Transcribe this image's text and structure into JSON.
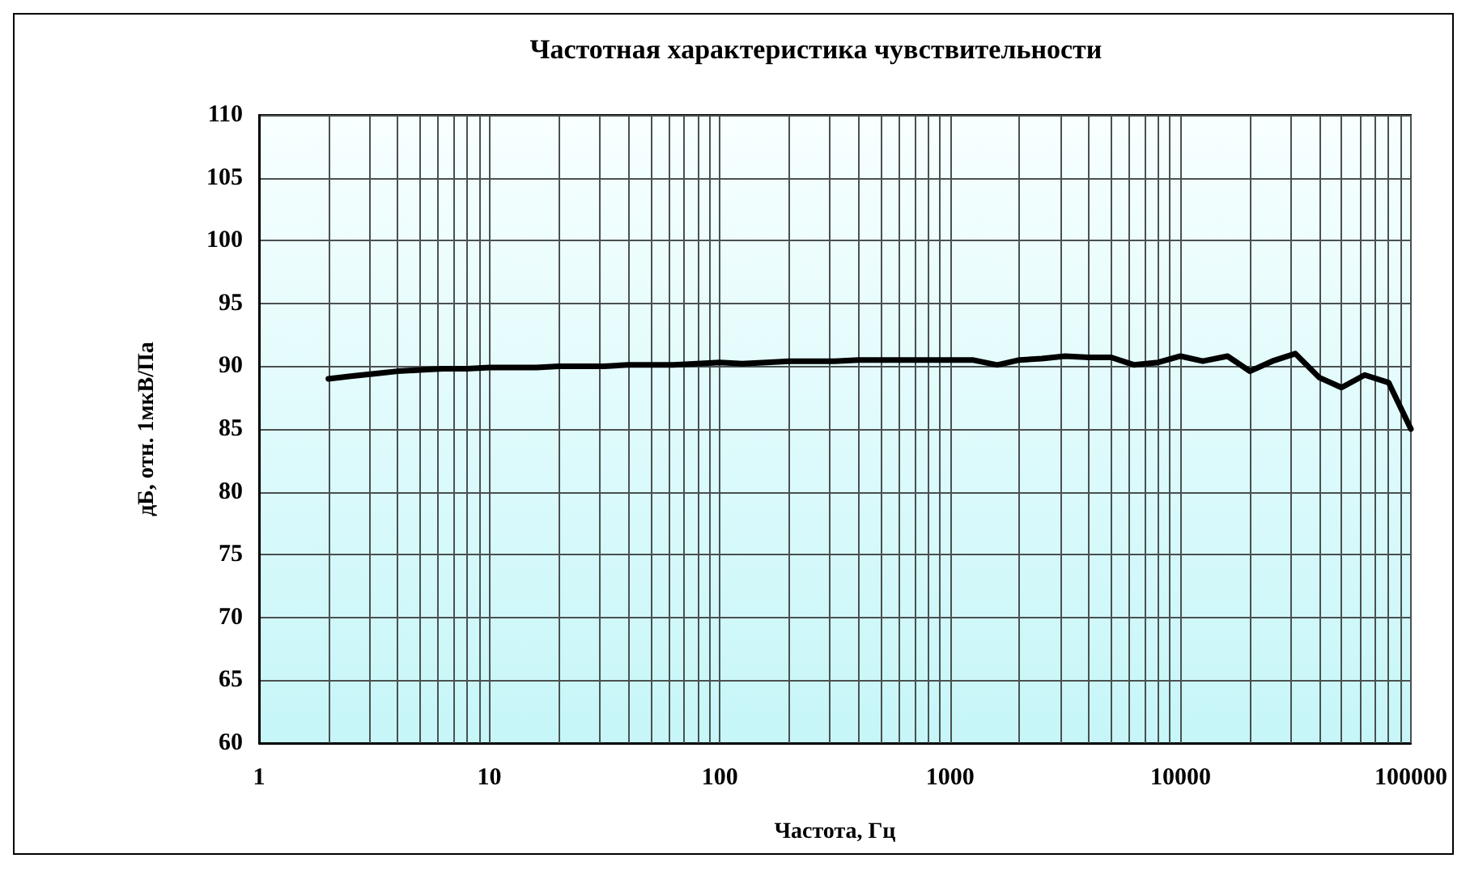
{
  "chart_data": {
    "type": "line",
    "title": "Частотная характеристика чувствительности",
    "xlabel": "Частота, Гц",
    "ylabel": "дБ, отн. 1мкВ/Па",
    "log": "x",
    "x": [
      2,
      2.5,
      3.15,
      4,
      5,
      6.3,
      8,
      10,
      12.5,
      16,
      20,
      25,
      31.5,
      40,
      50,
      63,
      80,
      100,
      125,
      160,
      200,
      250,
      315,
      400,
      500,
      630,
      800,
      1000,
      1250,
      1600,
      2000,
      2500,
      3150,
      4000,
      5000,
      6300,
      8000,
      10000,
      12500,
      16000,
      20000,
      25000,
      31500,
      40000,
      50000,
      63000,
      80000,
      100000
    ],
    "series": [
      {
        "color": "#000000",
        "values": [
          89.0,
          89.2,
          89.4,
          89.6,
          89.7,
          89.8,
          89.8,
          89.9,
          89.9,
          89.9,
          90.0,
          90.0,
          90.0,
          90.1,
          90.1,
          90.1,
          90.2,
          90.3,
          90.2,
          90.3,
          90.4,
          90.4,
          90.4,
          90.5,
          90.5,
          90.5,
          90.5,
          90.5,
          90.5,
          90.1,
          90.5,
          90.6,
          90.8,
          90.7,
          90.7,
          90.1,
          90.3,
          90.8,
          90.4,
          90.8,
          89.6,
          90.4,
          91.0,
          89.1,
          88.3,
          89.3,
          88.7,
          85.0
        ]
      }
    ],
    "xlim": [
      1,
      100000
    ],
    "xticks": [
      1,
      {
        "value": 2,
        "label": null
      },
      {
        "value": 3,
        "label": null
      },
      {
        "value": 4,
        "label": null
      },
      {
        "value": 5,
        "label": null
      },
      {
        "value": 6,
        "label": null
      },
      {
        "value": 7,
        "label": null
      },
      {
        "value": 8,
        "label": null
      },
      {
        "value": 9,
        "label": null
      },
      10,
      {
        "value": 20,
        "label": null
      },
      {
        "value": 30,
        "label": null
      },
      {
        "value": 40,
        "label": null
      },
      {
        "value": 50,
        "label": null
      },
      {
        "value": 60,
        "label": null
      },
      {
        "value": 70,
        "label": null
      },
      {
        "value": 80,
        "label": null
      },
      {
        "value": 90,
        "label": null
      },
      100,
      {
        "value": 200,
        "label": null
      },
      {
        "value": 300,
        "label": null
      },
      {
        "value": 400,
        "label": null
      },
      {
        "value": 500,
        "label": null
      },
      {
        "value": 600,
        "label": null
      },
      {
        "value": 700,
        "label": null
      },
      {
        "value": 800,
        "label": null
      },
      {
        "value": 900,
        "label": null
      },
      1000,
      {
        "value": 2000,
        "label": null
      },
      {
        "value": 3000,
        "label": null
      },
      {
        "value": 4000,
        "label": null
      },
      {
        "value": 5000,
        "label": null
      },
      {
        "value": 6000,
        "label": null
      },
      {
        "value": 7000,
        "label": null
      },
      {
        "value": 8000,
        "label": null
      },
      {
        "value": 9000,
        "label": null
      },
      10000,
      {
        "value": 20000,
        "label": null
      },
      {
        "value": 30000,
        "label": null
      },
      {
        "value": 40000,
        "label": null
      },
      {
        "value": 50000,
        "label": null
      },
      {
        "value": 60000,
        "label": null
      },
      {
        "value": 70000,
        "label": null
      },
      {
        "value": 80000,
        "label": null
      },
      {
        "value": 90000,
        "label": null
      },
      100000
    ],
    "ylim": [
      60,
      110
    ],
    "yticks": [
      60,
      65,
      70,
      75,
      80,
      85,
      90,
      95,
      100,
      105,
      110
    ],
    "grid": true,
    "marker": "none",
    "line_style": "solid"
  }
}
